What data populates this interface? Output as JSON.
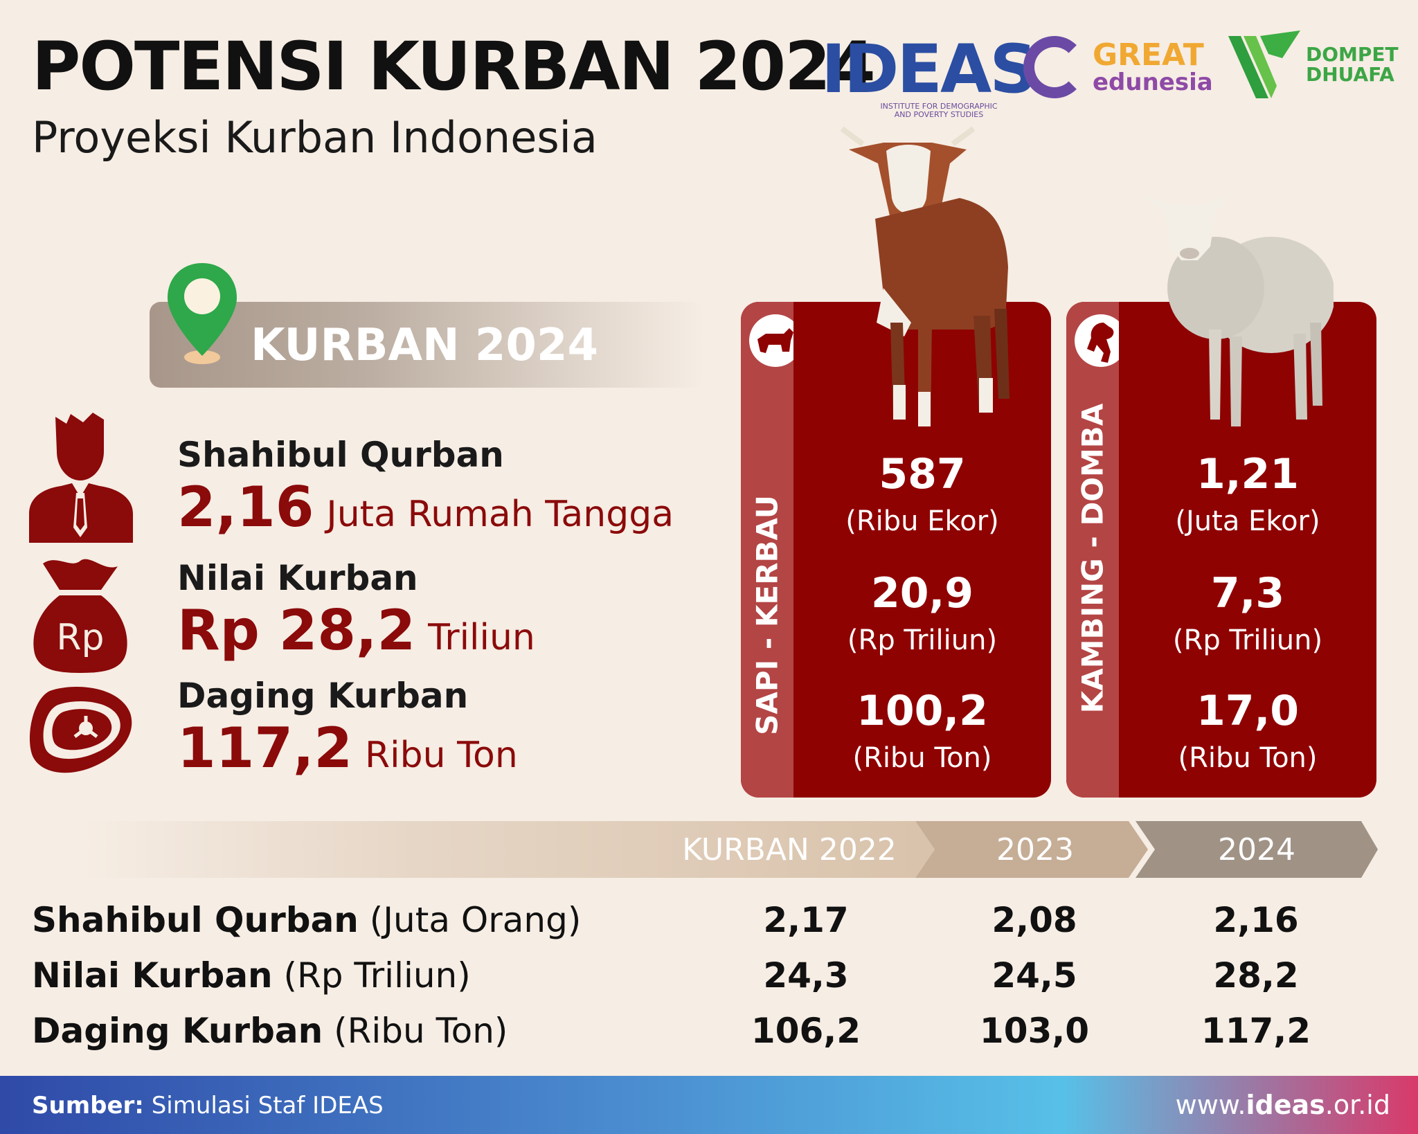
{
  "header": {
    "title": "POTENSI KURBAN 2024",
    "subtitle": "Proyeksi Kurban Indonesia"
  },
  "logos": {
    "ideas": "IDEAS",
    "ideas_sub_1": "INSTITUTE FOR DEMOGRAPHIC",
    "ideas_sub_2": "AND POVERTY STUDIES",
    "great": "GREAT",
    "edunesia": "edunesia",
    "dompet": "DOMPET",
    "dhuafa": "DHUAFA"
  },
  "banner": {
    "label": "KURBAN 2024"
  },
  "stats": [
    {
      "label": "Shahibul Qurban",
      "value": "2,16",
      "unit": "Juta Rumah Tangga"
    },
    {
      "label": "Nilai Kurban",
      "value": "Rp 28,2",
      "unit": "Triliun"
    },
    {
      "label": "Daging Kurban",
      "value": "117,2",
      "unit": "Ribu Ton"
    }
  ],
  "icons": {
    "money_bag_text": "Rp"
  },
  "panels": [
    {
      "category": "SAPI - KERBAU",
      "items": [
        {
          "value": "587",
          "unit": "(Ribu Ekor)"
        },
        {
          "value": "20,9",
          "unit": "(Rp Triliun)"
        },
        {
          "value": "100,2",
          "unit": "(Ribu Ton)"
        }
      ]
    },
    {
      "category": "KAMBING - DOMBA",
      "items": [
        {
          "value": "1,21",
          "unit": "(Juta Ekor)"
        },
        {
          "value": "7,3",
          "unit": "(Rp Triliun)"
        },
        {
          "value": "17,0",
          "unit": "(Ribu Ton)"
        }
      ]
    }
  ],
  "table": {
    "headers": [
      "KURBAN 2022",
      "2023",
      "2024"
    ],
    "rows": [
      {
        "label_bold": "Shahibul Qurban",
        "label_unit": " (Juta Orang)",
        "values": [
          "2,17",
          "2,08",
          "2,16"
        ]
      },
      {
        "label_bold": "Nilai Kurban",
        "label_unit": " (Rp Triliun)",
        "values": [
          "24,3",
          "24,5",
          "28,2"
        ]
      },
      {
        "label_bold": "Daging Kurban",
        "label_unit": " (Ribu Ton)",
        "values": [
          "106,2",
          "103,0",
          "117,2"
        ]
      }
    ]
  },
  "footer": {
    "source_label": "Sumber:",
    "source_text": " Simulasi Staf IDEAS",
    "url_pre": "www.",
    "url_bold": "ideas",
    "url_post": ".or.id"
  },
  "colors": {
    "accent_red": "#8f0202",
    "background": "#f6ede4"
  }
}
